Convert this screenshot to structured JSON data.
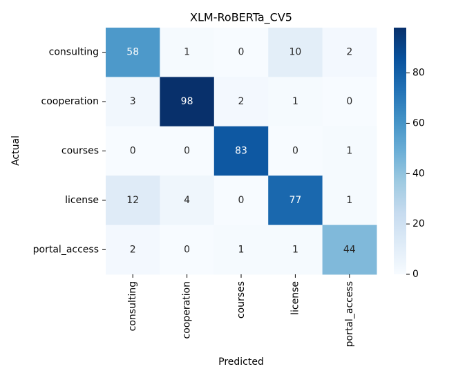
{
  "chart_data": {
    "type": "heatmap",
    "title": "XLM-RoBERTa_CV5",
    "x_label": "Predicted",
    "y_label": "Actual",
    "x_categories": [
      "consulting",
      "cooperation",
      "courses",
      "license",
      "portal_access"
    ],
    "y_categories": [
      "consulting",
      "cooperation",
      "courses",
      "license",
      "portal_access"
    ],
    "values": [
      [
        58,
        1,
        0,
        10,
        2
      ],
      [
        3,
        98,
        2,
        1,
        0
      ],
      [
        0,
        0,
        83,
        0,
        1
      ],
      [
        12,
        4,
        0,
        77,
        1
      ],
      [
        2,
        0,
        1,
        1,
        44
      ]
    ],
    "colormap": "Blues",
    "zlim": [
      0,
      98
    ],
    "zticks": [
      0,
      20,
      40,
      60,
      80
    ]
  }
}
